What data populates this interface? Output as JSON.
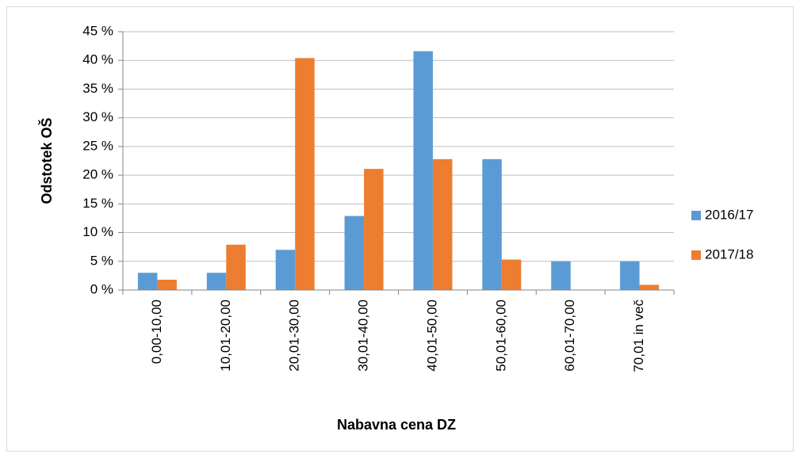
{
  "chart_data": {
    "type": "bar",
    "x_label": "Nabavna cena DZ",
    "y_label": "Odstotek OŠ",
    "categories": [
      "0,00-10,00",
      "10,01-20,00",
      "20,01-30,00",
      "30,01-40,00",
      "40,01-50,00",
      "50,01-60,00",
      "60,01-70,00",
      "70,01 in več"
    ],
    "series": [
      {
        "name": "2016/17",
        "color": "#5b9bd5",
        "values": [
          3,
          3,
          7,
          12.9,
          41.6,
          22.8,
          5,
          5
        ]
      },
      {
        "name": "2017/18",
        "color": "#ed7d31",
        "values": [
          1.8,
          7.9,
          40.4,
          21.1,
          22.8,
          5.3,
          0,
          0.9
        ]
      }
    ],
    "ylim": [
      0,
      45
    ],
    "yticks": [
      {
        "value": 0,
        "label": "0 %"
      },
      {
        "value": 5,
        "label": "5 %"
      },
      {
        "value": 10,
        "label": "10 %"
      },
      {
        "value": 15,
        "label": "15 %"
      },
      {
        "value": 20,
        "label": "20 %"
      },
      {
        "value": 25,
        "label": "25 %"
      },
      {
        "value": 30,
        "label": "30 %"
      },
      {
        "value": 35,
        "label": "35 %"
      },
      {
        "value": 40,
        "label": "40 %"
      },
      {
        "value": 45,
        "label": "45 %"
      }
    ],
    "grid": true,
    "legend": "right"
  }
}
